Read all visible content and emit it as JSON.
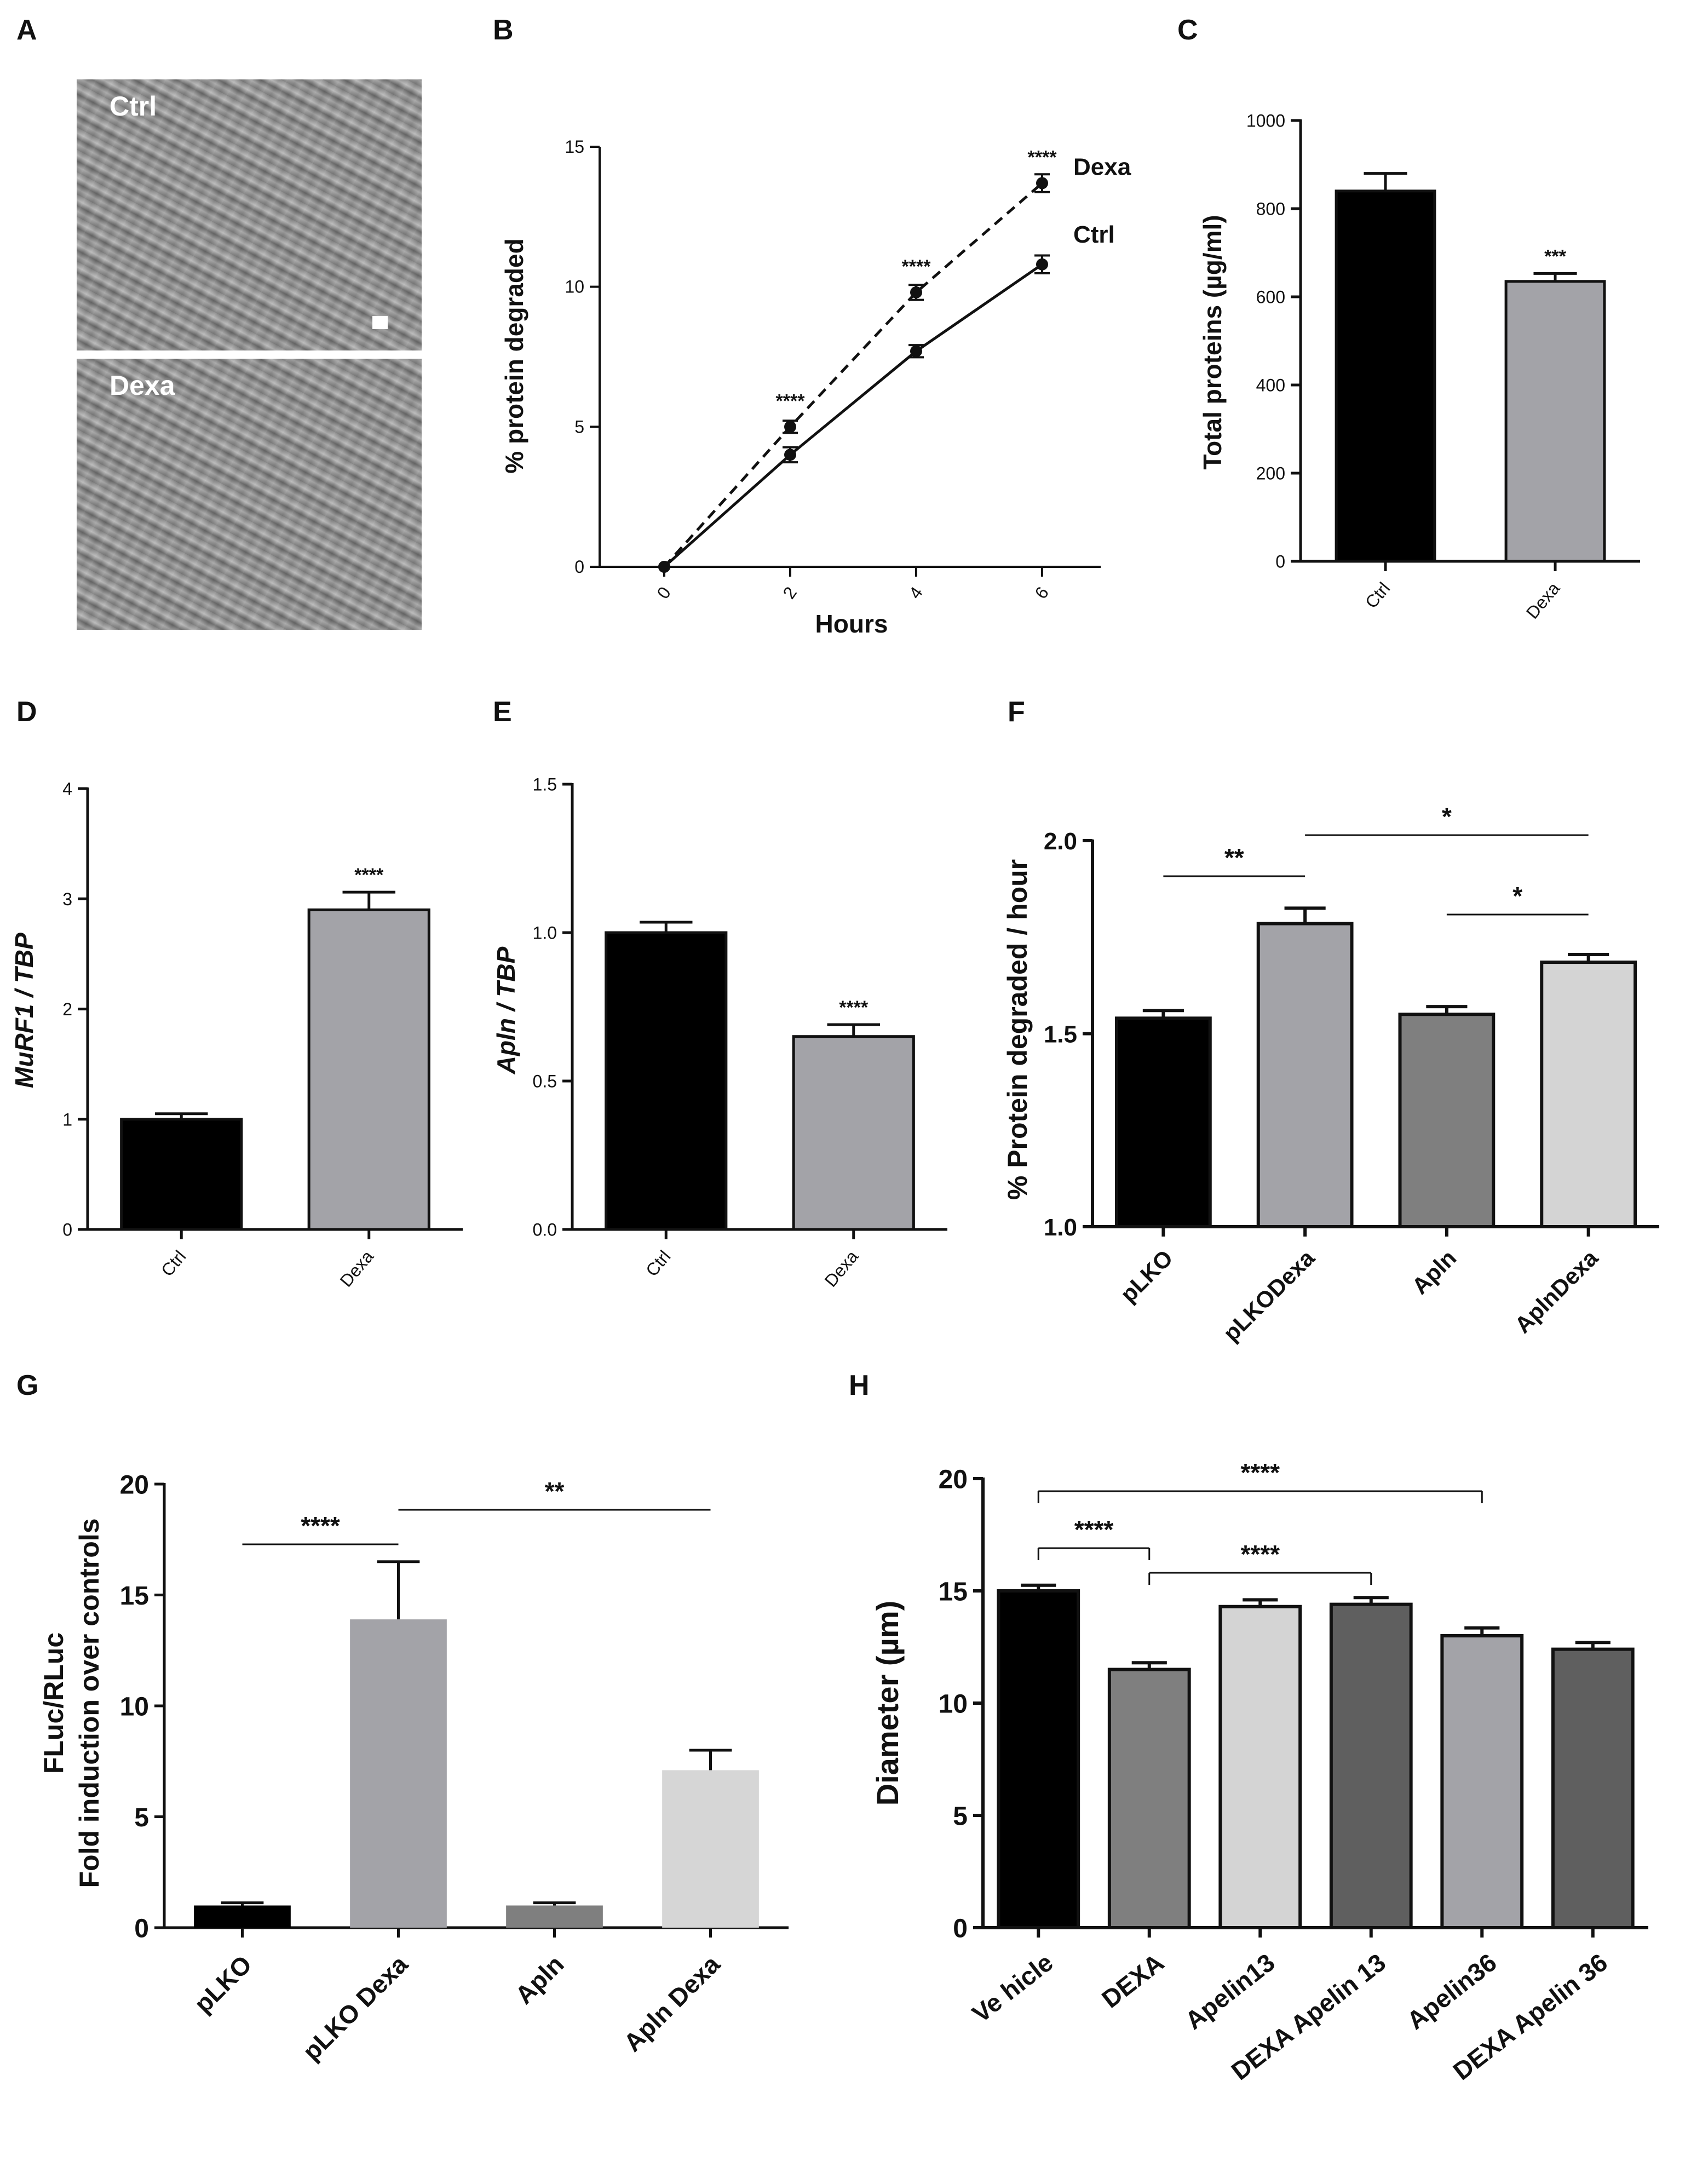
{
  "panels": {
    "A": {
      "letter": "A",
      "images": [
        {
          "label": "Ctrl",
          "description": "microscopy image of control myotubes"
        },
        {
          "label": "Dexa",
          "description": "microscopy image of dexamethasone-treated myotubes"
        }
      ]
    },
    "B": {
      "letter": "B"
    },
    "C": {
      "letter": "C"
    },
    "D": {
      "letter": "D"
    },
    "E": {
      "letter": "E"
    },
    "F": {
      "letter": "F"
    },
    "G": {
      "letter": "G"
    },
    "H": {
      "letter": "H"
    }
  },
  "chart_data": [
    {
      "id": "B",
      "type": "line",
      "xlabel": "Hours",
      "ylabel": "% protein degraded",
      "x": [
        0,
        2,
        4,
        6
      ],
      "xticks": [
        "0",
        "2",
        "4",
        "6"
      ],
      "yticks": [
        "0",
        "5",
        "10",
        "15"
      ],
      "ylim": [
        0,
        15
      ],
      "series": [
        {
          "name": "Dexa",
          "style": "dashed",
          "values": [
            0,
            5.0,
            9.8,
            13.7
          ],
          "errors": [
            0,
            0.1,
            0.15,
            0.2
          ]
        },
        {
          "name": "Ctrl",
          "style": "solid",
          "values": [
            0,
            4.0,
            7.7,
            10.8
          ],
          "errors": [
            0,
            0.15,
            0.1,
            0.2
          ]
        }
      ],
      "annotations": [
        {
          "x": 2,
          "text": "****"
        },
        {
          "x": 4,
          "text": "****"
        },
        {
          "x": 6,
          "text": "****"
        }
      ]
    },
    {
      "id": "C",
      "type": "bar",
      "ylabel": "Total proteins (µg/ml)",
      "categories": [
        "Ctrl",
        "Dexa"
      ],
      "values": [
        840,
        635
      ],
      "errors": [
        40,
        18
      ],
      "colors": [
        "#000000",
        "#a3a3a8"
      ],
      "ylim": [
        0,
        1000
      ],
      "yticks": [
        "0",
        "200",
        "400",
        "600",
        "800",
        "1000"
      ],
      "annotations": [
        {
          "bar": 1,
          "text": "***"
        }
      ]
    },
    {
      "id": "D",
      "type": "bar",
      "ylabel": "MuRF1 / TBP",
      "categories": [
        "Ctrl",
        "Dexa"
      ],
      "values": [
        1.0,
        2.9
      ],
      "errors": [
        0.05,
        0.16
      ],
      "colors": [
        "#000000",
        "#a3a3a8"
      ],
      "ylim": [
        0,
        4
      ],
      "yticks": [
        "0",
        "1",
        "2",
        "3",
        "4"
      ],
      "annotations": [
        {
          "bar": 1,
          "text": "****"
        }
      ]
    },
    {
      "id": "E",
      "type": "bar",
      "ylabel": "Apln / TBP",
      "categories": [
        "Ctrl",
        "Dexa"
      ],
      "values": [
        1.0,
        0.65
      ],
      "errors": [
        0.035,
        0.04
      ],
      "colors": [
        "#000000",
        "#a3a3a8"
      ],
      "ylim": [
        0,
        1.5
      ],
      "yticks": [
        "0.0",
        "0.5",
        "1.0",
        "1.5"
      ],
      "annotations": [
        {
          "bar": 1,
          "text": "****"
        }
      ]
    },
    {
      "id": "F",
      "type": "bar",
      "ylabel": "% Protein degraded / hour",
      "categories": [
        "pLKO",
        "pLKODexa",
        "Apln",
        "AplnDexa"
      ],
      "values": [
        1.54,
        1.785,
        1.55,
        1.685
      ],
      "errors": [
        0.02,
        0.04,
        0.02,
        0.02
      ],
      "colors": [
        "#000000",
        "#a3a3a8",
        "#7f7f7f",
        "#d4d4d4"
      ],
      "ylim": [
        1.0,
        2.0
      ],
      "yticks": [
        "1.0",
        "1.5",
        "2.0"
      ],
      "brackets": [
        {
          "from": 0,
          "to": 1,
          "text": "**"
        },
        {
          "from": 1,
          "to": 3,
          "text": "*"
        },
        {
          "from": 2,
          "to": 3,
          "text": "*"
        }
      ]
    },
    {
      "id": "G",
      "type": "bar",
      "ylabel": [
        "FLuc/RLuc",
        "Fold induction over controls"
      ],
      "categories": [
        "pLKO",
        "pLKO Dexa",
        "Apln",
        "Apln Dexa"
      ],
      "values": [
        1.0,
        13.9,
        1.0,
        7.1
      ],
      "errors": [
        0.12,
        2.6,
        0.12,
        0.9
      ],
      "colors": [
        "#000000",
        "#a3a3a8",
        "#7f7f7f",
        "#d6d6d6"
      ],
      "ylim": [
        0,
        20
      ],
      "yticks": [
        "0",
        "5",
        "10",
        "15",
        "20"
      ],
      "brackets": [
        {
          "from": 0,
          "to": 1,
          "text": "****"
        },
        {
          "from": 1,
          "to": 3,
          "text": "**"
        }
      ]
    },
    {
      "id": "H",
      "type": "bar",
      "ylabel": "Diameter (µm)",
      "categories": [
        "Ve hicle",
        "DEXA",
        "Apelin13",
        "DEXA  Apelin 13",
        "Apelin36",
        "DEXA  Apelin 36"
      ],
      "values": [
        15.0,
        11.5,
        14.3,
        14.4,
        13.0,
        12.4
      ],
      "errors": [
        0.25,
        0.3,
        0.3,
        0.3,
        0.35,
        0.3
      ],
      "colors": [
        "#000000",
        "#7f7f7f",
        "#d4d4d4",
        "#5f5f5f",
        "#a3a3a8",
        "#5f5f5f"
      ],
      "ylim": [
        0,
        20
      ],
      "yticks": [
        "0",
        "5",
        "10",
        "15",
        "20"
      ],
      "brackets": [
        {
          "from": 0,
          "to": 4,
          "text": "****"
        },
        {
          "from": 0,
          "to": 1,
          "text": "****"
        },
        {
          "from": 1,
          "to": 3,
          "text": "****"
        }
      ]
    }
  ]
}
